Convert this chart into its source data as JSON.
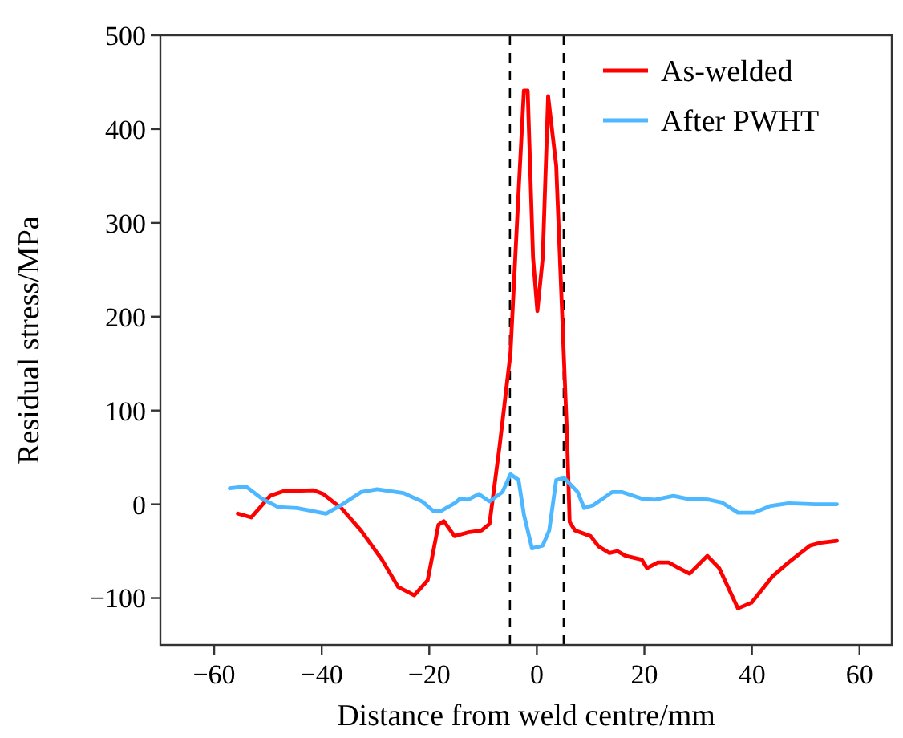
{
  "chart_data": {
    "type": "line",
    "xlabel": "Distance from weld centre/mm",
    "ylabel": "Residual stress/MPa",
    "xlim": [
      -70,
      66
    ],
    "ylim": [
      -150,
      500
    ],
    "xticks": [
      -60,
      -40,
      -20,
      0,
      20,
      40,
      60
    ],
    "yticks": [
      -100,
      0,
      100,
      200,
      300,
      400,
      500
    ],
    "grid": false,
    "legend": "top right",
    "marker": "none",
    "line_style": "solid",
    "ref_lines": [
      {
        "axis": "x",
        "value": -5,
        "color": "#000000",
        "line_style": "dashed"
      },
      {
        "axis": "x",
        "value": 5,
        "color": "#000000",
        "line_style": "dashed"
      }
    ],
    "series": [
      {
        "name": "As-welded",
        "color": "#ff0000",
        "x": [
          -55.6,
          -53.1,
          -49.6,
          -47.1,
          -41.6,
          -39.7,
          -36.2,
          -32.7,
          -28.8,
          -25.8,
          -22.8,
          -20.3,
          -18.3,
          -17.3,
          -15.3,
          -12.8,
          -10.3,
          -8.8,
          -6.9,
          -4.9,
          -3.4,
          -2.4,
          -1.7,
          -0.7,
          0.1,
          1.1,
          2.1,
          3.6,
          5.6,
          6.1,
          7.1,
          10,
          11.5,
          13.5,
          15,
          16.5,
          19.5,
          20.5,
          22.5,
          24.5,
          26.4,
          28.4,
          31.7,
          33.9,
          37.4,
          39.9,
          43.8,
          46.8,
          50.8,
          52.8,
          55.8
        ],
        "values": [
          -10,
          -14,
          9,
          14,
          15,
          11,
          -5,
          -28,
          -59,
          -88,
          -97,
          -81,
          -22,
          -18,
          -34,
          -30,
          -28,
          -21,
          63,
          161,
          332,
          441,
          441,
          263,
          206,
          263,
          435,
          361,
          75,
          -19,
          -28,
          -34,
          -45,
          -52,
          -50,
          -55,
          -59,
          -68,
          -62,
          -62,
          -68,
          -74,
          -55,
          -68,
          -111,
          -105,
          -77,
          -62,
          -44,
          -41,
          -39
        ]
      },
      {
        "name": "After PWHT",
        "color": "#4db8ff",
        "x": [
          -57.1,
          -54.1,
          -51.1,
          -48.1,
          -44.6,
          -39.2,
          -36.7,
          -32.7,
          -29.7,
          -24.8,
          -21.3,
          -19.3,
          -17.8,
          -15.3,
          -14.3,
          -12.8,
          -10.8,
          -8.8,
          -6.4,
          -4.9,
          -3.4,
          -2.4,
          -0.9,
          1.1,
          2.3,
          3.6,
          5.1,
          7.6,
          8.8,
          10.5,
          14,
          15.9,
          19.5,
          22,
          25.4,
          27.9,
          31.9,
          34.4,
          37.4,
          40.4,
          43.3,
          46.8,
          51.8,
          55.8
        ],
        "values": [
          17,
          19,
          6,
          -3,
          -4,
          -10,
          -2,
          13,
          16,
          12,
          3,
          -7,
          -7,
          1,
          6,
          5,
          11,
          3,
          13,
          32,
          26,
          -11,
          -47,
          -44,
          -28,
          26,
          28,
          13,
          -4,
          -1,
          13,
          13,
          6,
          5,
          9,
          6,
          5,
          2,
          -9,
          -9,
          -2,
          1,
          0,
          0
        ]
      }
    ]
  }
}
